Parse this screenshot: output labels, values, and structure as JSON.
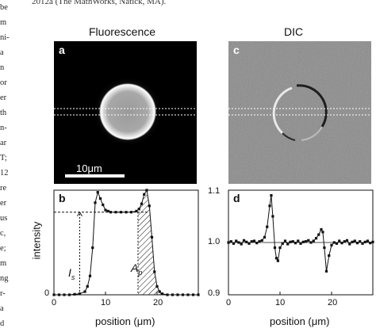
{
  "margin_text": [
    "be",
    "m",
    "ni-",
    "a",
    "n",
    "or",
    "er",
    "th",
    "n-",
    "ar",
    "T;",
    "12",
    "re",
    "er",
    "us",
    "c,",
    "e;",
    "m",
    "ng",
    "r-",
    "a",
    "d"
  ],
  "top_line": "2012a (The MathWorks, Natick, MA).",
  "panels": {
    "a": {
      "label": "a",
      "title": "Fluorescence",
      "scalebar": "10μm"
    },
    "c": {
      "label": "c",
      "title": "DIC"
    },
    "b": {
      "label": "b",
      "ylabel": "intensity",
      "xlabel": "position (μm)",
      "xticks": [
        "0",
        "10",
        "20"
      ],
      "yticks": [
        "0"
      ],
      "annot_is": "I",
      "annot_is_sub": "s",
      "annot_ap": "A",
      "annot_ap_sub": "p"
    },
    "d": {
      "label": "d",
      "xlabel": "position (μm)",
      "xticks": [
        "0",
        "10",
        "20"
      ],
      "yticks": [
        "1.1",
        "1.0",
        "0.9"
      ]
    }
  },
  "colors": {
    "image_bg": "#000000",
    "dic_bg": "#8a8a8a",
    "line": "#111111"
  },
  "chart_data": [
    {
      "type": "line",
      "panel": "b",
      "xlabel": "position (μm)",
      "ylabel": "intensity",
      "xlim": [
        0,
        28
      ],
      "ylim": [
        0,
        1
      ],
      "series": [
        {
          "x": [
            0,
            1,
            2,
            3,
            4,
            5,
            6,
            6.5,
            7,
            7.5,
            8,
            8.5,
            9,
            9.5,
            10,
            10.5,
            11,
            12,
            13,
            14,
            15,
            16,
            16.5,
            17,
            17.5,
            18,
            18.5,
            19,
            19.5,
            20,
            20.5,
            21,
            22,
            23,
            24,
            25,
            26,
            27,
            28
          ],
          "y": [
            0,
            0,
            0,
            0,
            0.005,
            0.01,
            0.03,
            0.08,
            0.18,
            0.45,
            0.88,
            0.98,
            0.92,
            0.86,
            0.81,
            0.8,
            0.79,
            0.79,
            0.79,
            0.79,
            0.79,
            0.8,
            0.82,
            0.87,
            0.96,
            1.0,
            0.85,
            0.55,
            0.22,
            0.08,
            0.03,
            0.01,
            0,
            0,
            0,
            0,
            0,
            0,
            0
          ]
        }
      ],
      "plateau_level": 0.79,
      "is_marker_x": 5
    },
    {
      "type": "line",
      "panel": "d",
      "xlabel": "position (μm)",
      "xlim": [
        0,
        28
      ],
      "ylim": [
        0.9,
        1.1
      ],
      "series": [
        {
          "x": [
            0,
            0.5,
            1,
            1.5,
            2,
            2.5,
            3,
            3.5,
            4,
            4.5,
            5,
            5.5,
            6,
            6.5,
            7,
            7.5,
            8,
            8.3,
            8.6,
            9,
            9.3,
            9.6,
            10,
            10.5,
            11,
            11.5,
            12,
            12.5,
            13,
            13.5,
            14,
            14.5,
            15,
            15.5,
            16,
            16.5,
            17,
            17.5,
            18,
            18.3,
            18.6,
            19,
            19.5,
            20,
            20.5,
            21,
            21.5,
            22,
            22.5,
            23,
            23.5,
            24,
            24.5,
            25,
            25.5,
            26,
            26.5,
            27,
            27.5,
            28
          ],
          "y": [
            1.0,
            1.002,
            0.998,
            1.003,
            1.0,
            0.997,
            1.004,
            1.001,
            0.998,
            1.002,
            1.003,
            0.999,
            1.002,
            1.004,
            1.01,
            1.03,
            1.07,
            1.09,
            1.05,
            0.99,
            0.97,
            0.965,
            0.99,
            0.998,
            1.003,
            0.997,
            1.001,
            1.002,
            0.999,
            1.003,
            0.998,
            1.001,
            1.002,
            1.004,
            1.0,
            1.003,
            1.008,
            1.015,
            1.025,
            1.02,
            0.99,
            0.945,
            0.975,
            0.995,
            1.0,
            0.998,
            1.003,
            0.999,
            1.002,
            1.004,
            0.997,
            1.001,
            1.003,
            0.999,
            1.002,
            0.998,
            1.001,
            1.003,
            0.999,
            1.001
          ]
        }
      ],
      "reference_level": 1.0
    }
  ]
}
